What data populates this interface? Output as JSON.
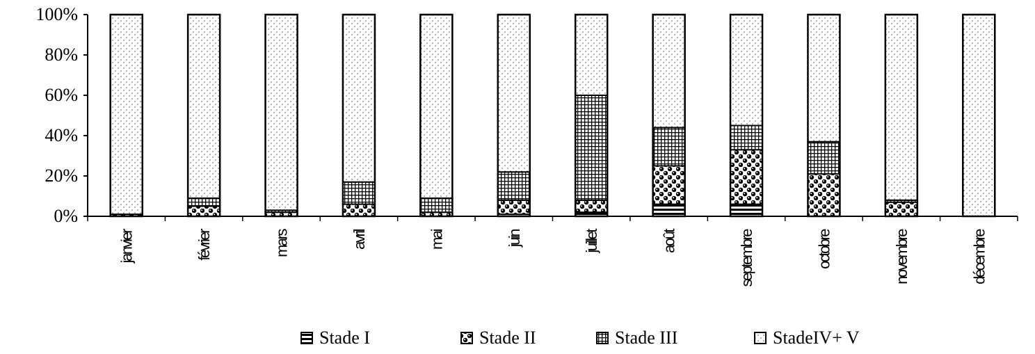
{
  "chart_data": {
    "type": "bar",
    "stacked": true,
    "percent": true,
    "categories": [
      "janvier",
      "février",
      "mars",
      "avril",
      "mai",
      "juin",
      "juillet",
      "août",
      "septembre",
      "octobre",
      "novembre",
      "décembre"
    ],
    "series": [
      {
        "name": "Stade I",
        "pattern": "hstripes",
        "values": [
          0,
          0,
          0,
          0,
          0,
          1,
          2,
          6,
          6,
          0,
          0,
          0
        ]
      },
      {
        "name": "Stade II",
        "pattern": "circles",
        "values": [
          1,
          5,
          2,
          6,
          2,
          7,
          6,
          19,
          27,
          21,
          7,
          0
        ]
      },
      {
        "name": "Stade III",
        "pattern": "grid",
        "values": [
          0,
          4,
          1,
          11,
          7,
          14,
          52,
          19,
          12,
          16,
          1,
          0
        ]
      },
      {
        "name": "StadeIV+ V",
        "pattern": "dots",
        "values": [
          99,
          91,
          97,
          83,
          91,
          78,
          40,
          56,
          55,
          63,
          92,
          100
        ]
      }
    ],
    "yticks": [
      "0%",
      "20%",
      "40%",
      "60%",
      "80%",
      "100%"
    ],
    "ylim": [
      0,
      100
    ],
    "legend_position": "bottom",
    "title": "",
    "xlabel": "",
    "ylabel": ""
  }
}
